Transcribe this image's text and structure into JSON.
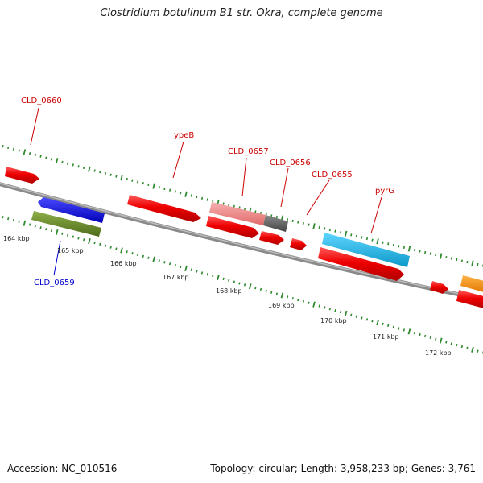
{
  "title": "Clostridium botulinum B1 str. Okra, complete genome",
  "footer": {
    "accession": "Accession: NC_010516",
    "topology": "Topology: circular; Length: 3,958,233 bp; Genes: 3,761"
  },
  "colors": {
    "backbone": "#8a8a8a",
    "tick": "#2e8b2e",
    "label_red": "#cc0000",
    "label_blue": "#0000cc",
    "kbp_label": "#222222"
  },
  "scale_labels": [
    "164 kbp",
    "165 kbp",
    "166 kbp",
    "167 kbp",
    "168 kbp",
    "169 kbp",
    "170 kbp",
    "171 kbp",
    "172 kbp"
  ],
  "gene_labels": [
    {
      "name": "CLD_0660",
      "color": "red"
    },
    {
      "name": "ypeB",
      "color": "red"
    },
    {
      "name": "CLD_0657",
      "color": "red"
    },
    {
      "name": "CLD_0656",
      "color": "red"
    },
    {
      "name": "CLD_0655",
      "color": "red"
    },
    {
      "name": "pyrG",
      "color": "red"
    },
    {
      "name": "CLD_0659",
      "color": "blue"
    }
  ],
  "features": [
    {
      "name": "CLD_0660",
      "color": "#ee0000",
      "strand": "forward",
      "track": "outer-1"
    },
    {
      "name": "ypeB",
      "color": "#ee0000",
      "strand": "forward",
      "track": "outer-1"
    },
    {
      "name": "CLD_0657",
      "color": "#f08080",
      "strand": "forward",
      "track": "outer-1"
    },
    {
      "name": "CLD_0656",
      "color": "#666666",
      "strand": "forward",
      "track": "outer-1"
    },
    {
      "name": "CLD_0655",
      "color": "#ee0000",
      "strand": "forward",
      "track": "outer-2"
    },
    {
      "name": "pyrG",
      "color": "#1ab3e6",
      "strand": "forward",
      "track": "outer-1"
    },
    {
      "name": "CLD_0659",
      "color": "#0000ee",
      "strand": "reverse",
      "track": "inner-1"
    },
    {
      "name": "CLD_0659 (CDS)",
      "color": "#6b8e23",
      "strand": "reverse",
      "track": "inner-2"
    },
    {
      "name": "unlabeled",
      "color": "#ee0000",
      "strand": "forward",
      "track": "outer-2"
    },
    {
      "name": "unlabeled",
      "color": "#ee0000",
      "strand": "forward",
      "track": "outer-2"
    },
    {
      "name": "unlabeled",
      "color": "#ee0000",
      "strand": "forward",
      "track": "outer-2"
    },
    {
      "name": "unlabeled",
      "color": "#ee0000",
      "strand": "forward",
      "track": "outer-2"
    },
    {
      "name": "unlabeled",
      "color": "#ee0000",
      "strand": "forward",
      "track": "outer-2"
    },
    {
      "name": "unlabeled",
      "color": "#ee0000",
      "strand": "forward",
      "track": "outer-1"
    },
    {
      "name": "unlabeled",
      "color": "#ff8c00",
      "strand": "forward",
      "track": "outer-1"
    }
  ]
}
